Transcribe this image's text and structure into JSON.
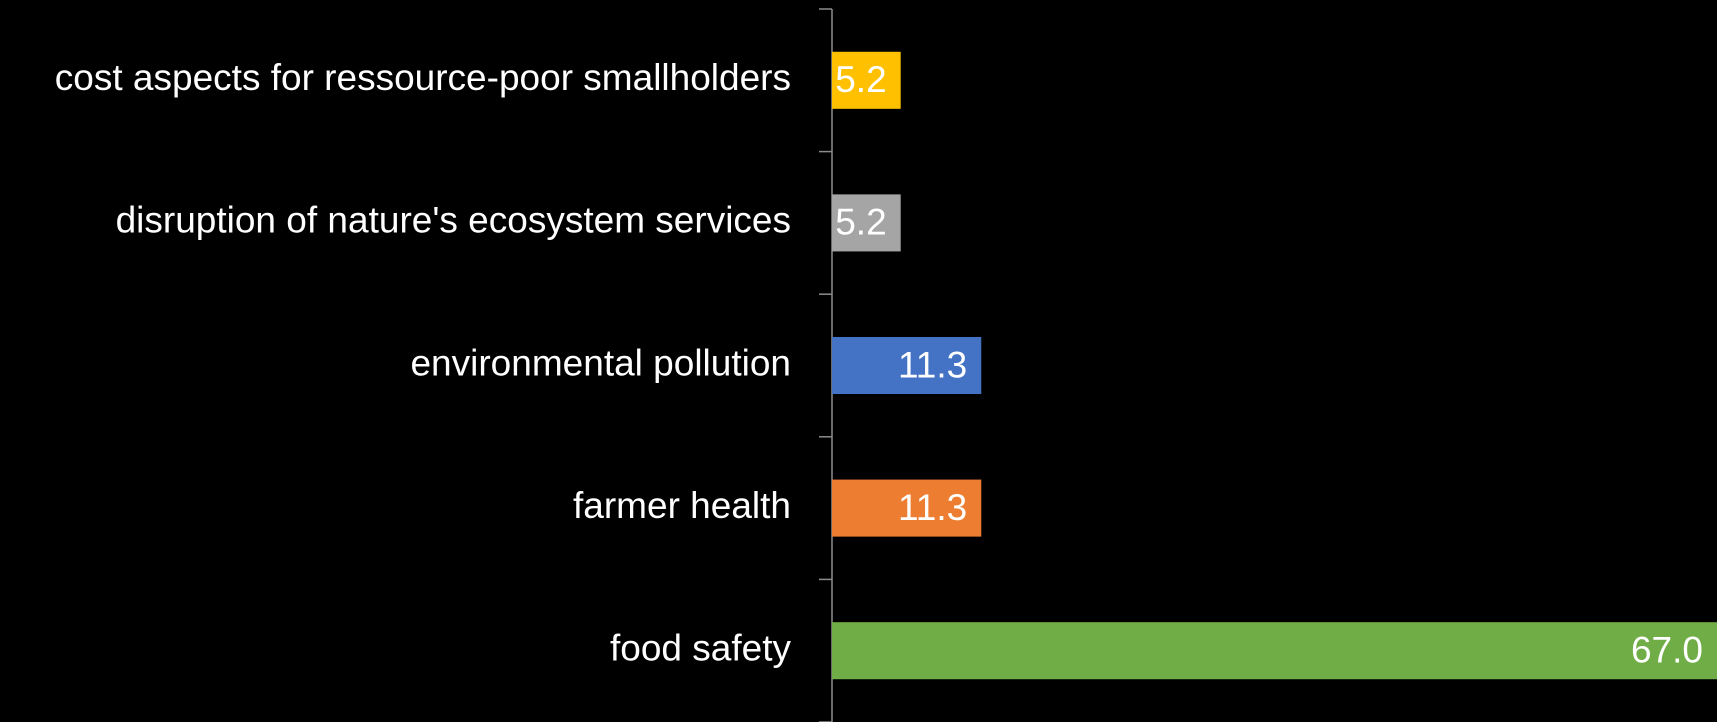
{
  "chart_data": {
    "type": "barh",
    "categories": [
      "cost aspects for ressource-poor smallholders",
      "disruption of nature's ecosystem services",
      "environmental pollution",
      "farmer health",
      "food safety"
    ],
    "values": [
      5.2,
      5.2,
      11.3,
      11.3,
      67.0
    ],
    "value_labels": [
      "5.2",
      "5.2",
      "11.3",
      "11.3",
      "67.0"
    ],
    "colors": [
      "#ffc000",
      "#a5a5a5",
      "#4472c4",
      "#ed7d31",
      "#70ad47"
    ],
    "xlim": [
      0,
      67
    ]
  }
}
